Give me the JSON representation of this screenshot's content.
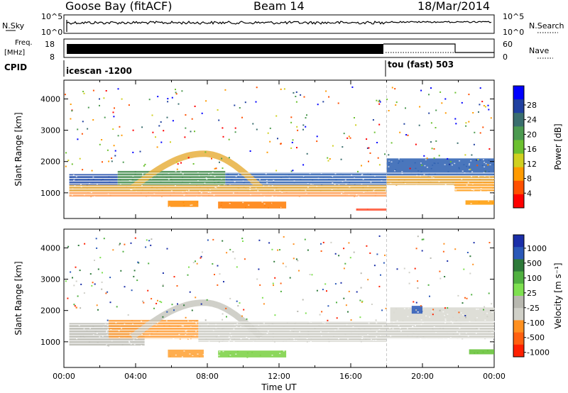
{
  "header": {
    "station": "Goose Bay (fitACF)",
    "beam": "Beam 14",
    "date": "18/Mar/2014"
  },
  "nsky_panel": {
    "left_label": "N.Sky",
    "left_ticks": [
      "10^5",
      "10^0"
    ],
    "right_ticks": [
      "10^5",
      "10^0"
    ],
    "right_label": "N.Search"
  },
  "freq_panel": {
    "left_label_1": "Freq.",
    "left_label_2": "[MHz]",
    "left_ticks": [
      "18",
      "8"
    ],
    "right_ticks": [
      "60",
      "0"
    ],
    "right_label": "Nave"
  },
  "cpid_panel": {
    "label": "CPID",
    "mode_1": "icescan -1200",
    "mode_2": "tou (fast) 503",
    "mode_change_hour": 18.0
  },
  "chart_data": [
    {
      "type": "heatmap",
      "name": "power",
      "ylabel": "Slant Range [km]",
      "xlabel": "",
      "x_ticks": [
        "00:00",
        "04:00",
        "08:00",
        "12:00",
        "16:00",
        "20:00",
        "00:00"
      ],
      "y_ticks": [
        "1000",
        "2000",
        "3000",
        "4000"
      ],
      "x_range_hours": [
        0,
        24
      ],
      "y_range_km": [
        180,
        4600
      ],
      "colorbar_label": "Power [dB]",
      "colorbar_ticks": [
        "4",
        "8",
        "12",
        "16",
        "20",
        "24",
        "28"
      ],
      "colorbar_colors": [
        "#0000ff",
        "#2040a0",
        "#3a6e6e",
        "#4c9a50",
        "#6cc030",
        "#d0d020",
        "#ff9a00",
        "#ff5000",
        "#ff0000"
      ],
      "regions": [
        {
          "t0": 0.3,
          "t1": 3.0,
          "r0": 1250,
          "r1": 1600,
          "color": "#1f4aa8"
        },
        {
          "t0": 3.0,
          "t1": 9.0,
          "r0": 1250,
          "r1": 1700,
          "color": "#3f8a4a"
        },
        {
          "t0": 9.0,
          "t1": 18.0,
          "r0": 1250,
          "r1": 1650,
          "color": "#2a5eb0"
        },
        {
          "t0": 0.3,
          "t1": 18.0,
          "r0": 1050,
          "r1": 1250,
          "color": "#e0a02a"
        },
        {
          "t0": 0.3,
          "t1": 18.0,
          "r0": 880,
          "r1": 1050,
          "color": "#ff9a50"
        },
        {
          "t0": 5.8,
          "t1": 7.5,
          "r0": 550,
          "r1": 750,
          "color": "#ff8a00"
        },
        {
          "t0": 8.6,
          "t1": 12.4,
          "r0": 500,
          "r1": 720,
          "color": "#ff7a00"
        },
        {
          "t0": 16.3,
          "t1": 18.0,
          "r0": 430,
          "r1": 500,
          "color": "#ff5030"
        },
        {
          "t0": 18.0,
          "t1": 24.0,
          "r0": 1250,
          "r1": 1550,
          "color": "#e0a030"
        },
        {
          "t0": 18.0,
          "t1": 24.0,
          "r0": 1550,
          "r1": 2100,
          "color": "#2a5eb0"
        },
        {
          "t0": 21.8,
          "t1": 24.0,
          "r0": 1050,
          "r1": 1350,
          "color": "#ffa020"
        },
        {
          "t0": 22.4,
          "t1": 24.0,
          "r0": 620,
          "r1": 760,
          "color": "#ff9a00"
        }
      ],
      "arc": {
        "t_start": 3.8,
        "t_peak": 7.8,
        "t_end": 11.0,
        "r_base": 1150,
        "r_peak": 2250,
        "color": "#e8b040"
      }
    },
    {
      "type": "heatmap",
      "name": "velocity",
      "ylabel": "Slant Range [km]",
      "xlabel": "Time UT",
      "x_ticks": [
        "00:00",
        "04:00",
        "08:00",
        "12:00",
        "16:00",
        "20:00",
        "00:00"
      ],
      "y_ticks": [
        "1000",
        "2000",
        "3000",
        "4000"
      ],
      "x_range_hours": [
        0,
        24
      ],
      "y_range_km": [
        180,
        4600
      ],
      "colorbar_label": "Velocity [m s⁻¹]",
      "colorbar_ticks": [
        "1000",
        "500",
        "100",
        "25",
        "-25",
        "-100",
        "-500",
        "-1000"
      ],
      "colorbar_colors": [
        "#1a2ea8",
        "#2a58b8",
        "#2e7a3a",
        "#50b040",
        "#7ee050",
        "#b8b8b0",
        "#d0d0c8",
        "#ff9020",
        "#ff6010",
        "#ff2000"
      ],
      "regions": [
        {
          "t0": 0.3,
          "t1": 4.5,
          "r0": 880,
          "r1": 1600,
          "color": "#b8b8b0"
        },
        {
          "t0": 2.5,
          "t1": 7.5,
          "r0": 1100,
          "r1": 1700,
          "color": "#ff9a30"
        },
        {
          "t0": 5.8,
          "t1": 7.8,
          "r0": 500,
          "r1": 750,
          "color": "#ffa030"
        },
        {
          "t0": 8.6,
          "t1": 12.4,
          "r0": 500,
          "r1": 720,
          "color": "#78d040"
        },
        {
          "t0": 7.5,
          "t1": 18.0,
          "r0": 1000,
          "r1": 1650,
          "color": "#c8c8c0"
        },
        {
          "t0": 18.0,
          "t1": 24.0,
          "r0": 1100,
          "r1": 1600,
          "color": "#c8c8c0"
        },
        {
          "t0": 18.2,
          "t1": 24.0,
          "r0": 1600,
          "r1": 2100,
          "color": "#d8d8d0"
        },
        {
          "t0": 19.4,
          "t1": 20.0,
          "r0": 1900,
          "r1": 2150,
          "color": "#2a58b8"
        },
        {
          "t0": 22.6,
          "t1": 24.0,
          "r0": 600,
          "r1": 760,
          "color": "#60c030"
        }
      ],
      "arc": {
        "t_start": 3.8,
        "t_peak": 7.8,
        "t_end": 11.0,
        "r_base": 1150,
        "r_peak": 2250,
        "color": "#c8c8c0"
      }
    }
  ]
}
